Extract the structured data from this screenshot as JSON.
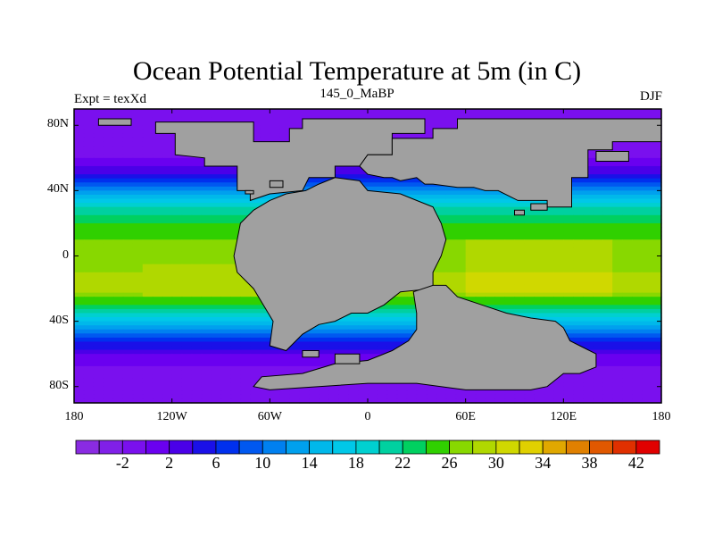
{
  "title": "Ocean Potential Temperature at 5m (in C)",
  "subtitle_left": "Expt = texXd",
  "subtitle_center": "145_0_MaBP",
  "subtitle_right": "DJF",
  "lat_ticks": [
    {
      "label": "80N",
      "lat": 80
    },
    {
      "label": "40N",
      "lat": 40
    },
    {
      "label": "0",
      "lat": 0
    },
    {
      "label": "40S",
      "lat": -40
    },
    {
      "label": "80S",
      "lat": -80
    }
  ],
  "lon_ticks": [
    {
      "label": "180",
      "lon": -180
    },
    {
      "label": "120W",
      "lon": -120
    },
    {
      "label": "60W",
      "lon": -60
    },
    {
      "label": "0",
      "lon": 0
    },
    {
      "label": "60E",
      "lon": 60
    },
    {
      "label": "120E",
      "lon": 120
    },
    {
      "label": "180",
      "lon": 180
    }
  ],
  "colorbar": {
    "levels": [
      -6,
      -4,
      -2,
      0,
      2,
      4,
      6,
      8,
      10,
      12,
      14,
      16,
      18,
      20,
      22,
      24,
      26,
      28,
      30,
      32,
      34,
      36,
      38,
      40,
      42,
      44
    ],
    "labeled": [
      "-2",
      "2",
      "6",
      "10",
      "14",
      "18",
      "22",
      "26",
      "30",
      "34",
      "38",
      "42"
    ],
    "colors": [
      "#8a2be2",
      "#8020e8",
      "#7a10ee",
      "#6a00f0",
      "#4a00e8",
      "#1a10e8",
      "#0030ee",
      "#0058f0",
      "#0080f0",
      "#00a0ee",
      "#00b8ea",
      "#00c8e8",
      "#00d0d0",
      "#00d0a0",
      "#00d060",
      "#30d000",
      "#88d800",
      "#b0d800",
      "#d0d800",
      "#e0d000",
      "#e0a800",
      "#e08000",
      "#e05800",
      "#e03000",
      "#e00000"
    ]
  },
  "colors": {
    "land": "#a0a0a0",
    "polar": "#7a10ee",
    "mid": "#4a4af0"
  },
  "chart_data": {
    "type": "heatmap",
    "title": "Ocean Potential Temperature at 5m (in C)",
    "variable": "potential temperature",
    "units": "C",
    "season": "DJF",
    "zonal_profile": {
      "lat": [
        90,
        80,
        70,
        60,
        50,
        40,
        30,
        20,
        10,
        0,
        -10,
        -20,
        -30,
        -40,
        -50,
        -60,
        -70,
        -80,
        -90
      ],
      "value": [
        -2,
        -2,
        -1,
        0,
        4,
        12,
        20,
        24,
        26,
        26,
        28,
        29,
        24,
        16,
        8,
        2,
        -1,
        -2,
        -2
      ]
    },
    "xlim": [
      -180,
      180
    ],
    "ylim": [
      -90,
      90
    ]
  }
}
